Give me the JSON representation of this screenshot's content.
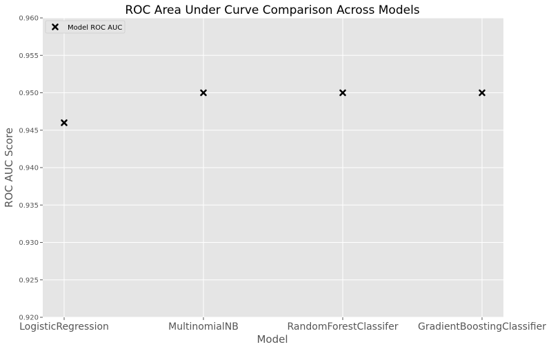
{
  "chart_data": {
    "type": "scatter",
    "title": "ROC Area Under Curve Comparison Across Models",
    "xlabel": "Model",
    "ylabel": "ROC AUC Score",
    "categories": [
      "LogisticRegression",
      "MultinomialNB",
      "RandomForestClassifer",
      "GradientBoostingClassifier"
    ],
    "series": [
      {
        "name": "Model ROC AUC",
        "values": [
          0.946,
          0.95,
          0.95,
          0.95
        ],
        "marker": "x",
        "color": "#000000"
      }
    ],
    "ylim": [
      0.92,
      0.96
    ],
    "yticks": [
      "0.920",
      "0.925",
      "0.930",
      "0.935",
      "0.940",
      "0.945",
      "0.950",
      "0.955",
      "0.960"
    ],
    "grid": true,
    "legend_position": "top-left",
    "background_color": "#e5e5e5",
    "grid_color": "#ffffff"
  }
}
